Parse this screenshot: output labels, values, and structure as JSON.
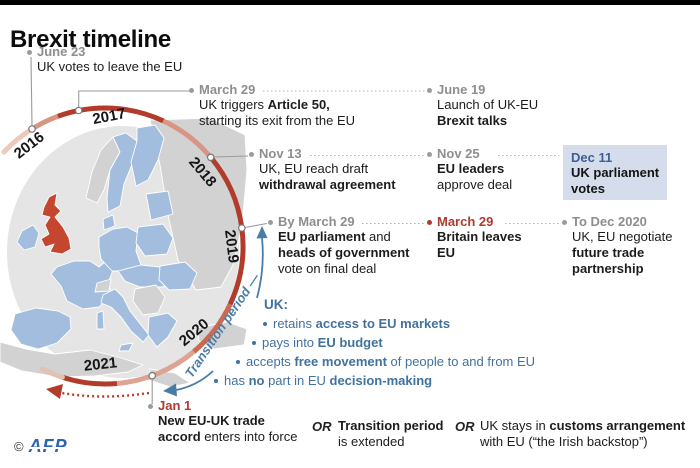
{
  "title": "Brexit timeline",
  "years": [
    "2016",
    "2017",
    "2018",
    "2019",
    "2020",
    "2021"
  ],
  "transition": {
    "label": "Transition period —",
    "heading": "UK:",
    "items": [
      [
        [
          {
            "t": "retains "
          },
          {
            "t": "access to EU markets",
            "b": true
          }
        ]
      ],
      [
        [
          {
            "t": "pays into "
          },
          {
            "t": "EU budget",
            "b": true
          }
        ]
      ],
      [
        [
          {
            "t": "accepts "
          },
          {
            "t": "free movement",
            "b": true
          },
          {
            "t": " of people to and from EU"
          }
        ]
      ],
      [
        [
          {
            "t": "has "
          },
          {
            "t": "no",
            "b": true
          },
          {
            "t": " part in EU "
          },
          {
            "t": "decision-making",
            "b": true
          }
        ]
      ]
    ]
  },
  "events": {
    "june23": {
      "date": "June 23",
      "lines": [
        [
          {
            "t": "UK votes to leave the EU"
          }
        ]
      ]
    },
    "article50": {
      "date": "March 29",
      "lines": [
        [
          {
            "t": "UK triggers "
          },
          {
            "t": "Article 50,",
            "b": true
          }
        ],
        [
          {
            "t": "starting its exit from the EU"
          }
        ]
      ]
    },
    "june19": {
      "date": "June 19",
      "lines": [
        [
          {
            "t": "Launch of UK-EU"
          }
        ],
        [
          {
            "t": "Brexit talks",
            "b": true
          }
        ]
      ]
    },
    "nov13": {
      "date": "Nov 13",
      "lines": [
        [
          {
            "t": "UK, EU reach draft"
          }
        ],
        [
          {
            "t": "withdrawal agreement",
            "b": true
          }
        ]
      ]
    },
    "nov25": {
      "date": "Nov 25",
      "lines": [
        [
          {
            "t": "EU leaders",
            "b": true
          }
        ],
        [
          {
            "t": "approve deal"
          }
        ]
      ]
    },
    "dec11": {
      "date": "Dec 11",
      "lines": [
        [
          {
            "t": "UK parliament",
            "b": true
          }
        ],
        [
          {
            "t": "votes",
            "b": true
          }
        ]
      ]
    },
    "by_march29": {
      "date": "By March 29",
      "lines": [
        [
          {
            "t": "EU parliament",
            "b": true
          },
          {
            "t": " and"
          }
        ],
        [
          {
            "t": "heads of government",
            "b": true
          }
        ],
        [
          {
            "t": "vote on final deal"
          }
        ]
      ]
    },
    "march29": {
      "date": "March 29",
      "lines": [
        [
          {
            "t": "Britain leaves",
            "b": true
          }
        ],
        [
          {
            "t": "EU",
            "b": true
          }
        ]
      ]
    },
    "dec2020": {
      "date": "To Dec 2020",
      "lines": [
        [
          {
            "t": "UK, EU negotiate"
          }
        ],
        [
          {
            "t": "future trade",
            "b": true
          }
        ],
        [
          {
            "t": "partnership",
            "b": true
          }
        ]
      ]
    },
    "jan1": {
      "date": "Jan 1",
      "lines": [
        [
          {
            "t": "New EU-UK trade",
            "b": true
          }
        ],
        [
          {
            "t": "accord",
            "b": true
          },
          {
            "t": " enters into force"
          }
        ]
      ]
    }
  },
  "alternatives": {
    "or1_label": "OR",
    "or1_lines": [
      [
        {
          "t": "Transition period",
          "b": true
        }
      ],
      [
        {
          "t": "is extended"
        }
      ]
    ],
    "or2_label": "OR",
    "or2_lines": [
      [
        {
          "t": "UK stays in "
        },
        {
          "t": "customs arrangement",
          "b": true
        }
      ],
      [
        {
          "t": "with EU (“the Irish backstop”)"
        }
      ]
    ]
  },
  "footer": {
    "copyright": "©",
    "logo": "AFP"
  },
  "colors": {
    "uk_red": "#c5462f",
    "eu_blue": "#a2bddd",
    "non_eu_gray": "#d2d2d2",
    "arc_dark": "#b23c2c",
    "arc_light": "#dda491",
    "highlight_box_bg": "#d5ddec",
    "date_gray": "#8e8e8e",
    "emphasis_red": "#b03a2e",
    "transition_blue": "#41729e",
    "dec11_blue": "#3c5f94",
    "afp_blue": "#2f62b0"
  }
}
